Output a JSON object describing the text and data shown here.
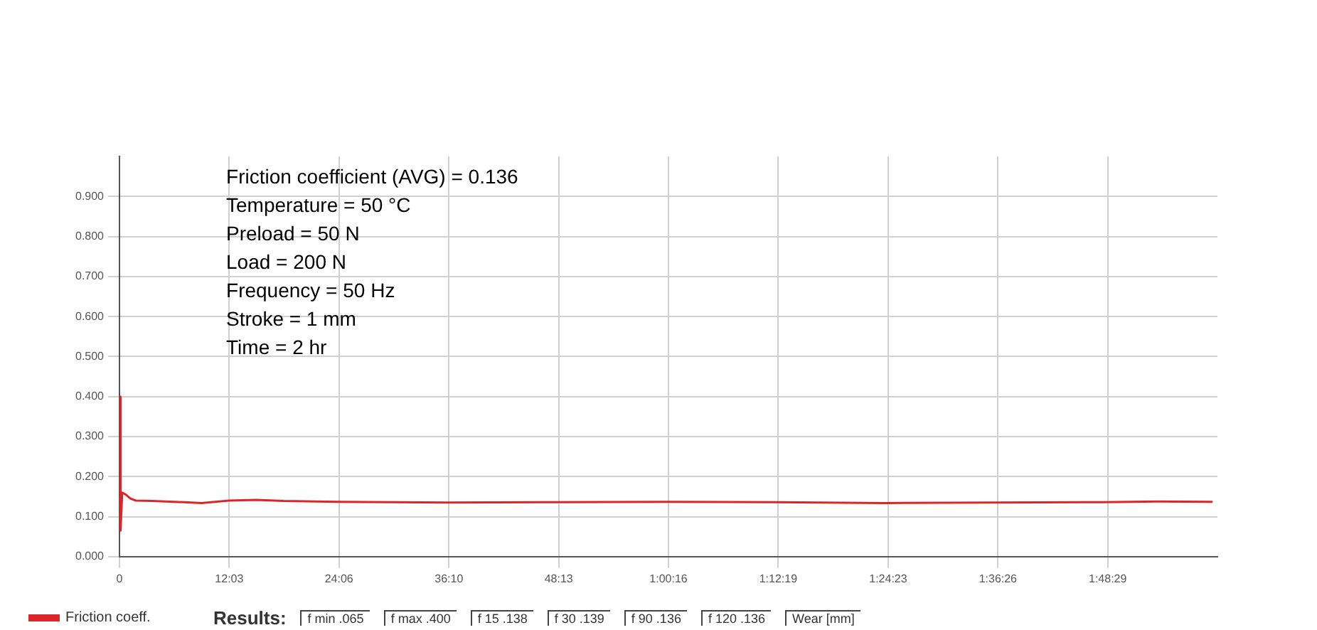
{
  "chart_data": {
    "type": "line",
    "series": [
      {
        "name": "Friction coeff.",
        "color": "#d9262b",
        "x": [
          0,
          0.12,
          0.3,
          0.7,
          1.2,
          1.8,
          3.6,
          6,
          9,
          12,
          15,
          18,
          24,
          30,
          36,
          48,
          60,
          72,
          84,
          96,
          108,
          114,
          120
        ],
        "values": [
          0.4,
          0.065,
          0.16,
          0.155,
          0.145,
          0.14,
          0.139,
          0.137,
          0.134,
          0.14,
          0.142,
          0.139,
          0.137,
          0.136,
          0.135,
          0.136,
          0.137,
          0.136,
          0.134,
          0.135,
          0.136,
          0.138,
          0.137
        ]
      }
    ],
    "xlim": [
      0,
      120.53
    ],
    "xticks": [
      {
        "value": 0,
        "label": "0"
      },
      {
        "value": 12.05,
        "label": "12:03"
      },
      {
        "value": 24.1,
        "label": "24:06"
      },
      {
        "value": 36.167,
        "label": "36:10"
      },
      {
        "value": 48.217,
        "label": "48:13"
      },
      {
        "value": 60.267,
        "label": "1:00:16"
      },
      {
        "value": 72.317,
        "label": "1:12:19"
      },
      {
        "value": 84.383,
        "label": "1:24:23"
      },
      {
        "value": 96.433,
        "label": "1:36:26"
      },
      {
        "value": 108.483,
        "label": "1:48:29"
      }
    ],
    "ylim": [
      0,
      1.0
    ],
    "yticks": [
      {
        "value": 0,
        "label": "0.000"
      },
      {
        "value": 0.1,
        "label": "0.100"
      },
      {
        "value": 0.2,
        "label": "0.200"
      },
      {
        "value": 0.3,
        "label": "0.300"
      },
      {
        "value": 0.4,
        "label": "0.400"
      },
      {
        "value": 0.5,
        "label": "0.500"
      },
      {
        "value": 0.6,
        "label": "0.600"
      },
      {
        "value": 0.7,
        "label": "0.700"
      },
      {
        "value": 0.8,
        "label": "0.800"
      },
      {
        "value": 0.9,
        "label": "0.900"
      }
    ],
    "grid": true,
    "legend": "bottom left",
    "marker": "none",
    "line_style": "solid",
    "annotations": [
      "Friction coefficient (AVG) = 0.136",
      "Temperature = 50 °C",
      "Preload = 50 N",
      "Load = 200 N",
      "Frequency = 50 Hz",
      "Stroke = 1 mm",
      "Time = 2 hr",
      "Results:",
      "f min .065",
      "f max .400",
      "f 15 .138",
      "f 30 .139",
      "f 90 .136",
      "f 120 .136",
      "Wear [mm]"
    ]
  }
}
